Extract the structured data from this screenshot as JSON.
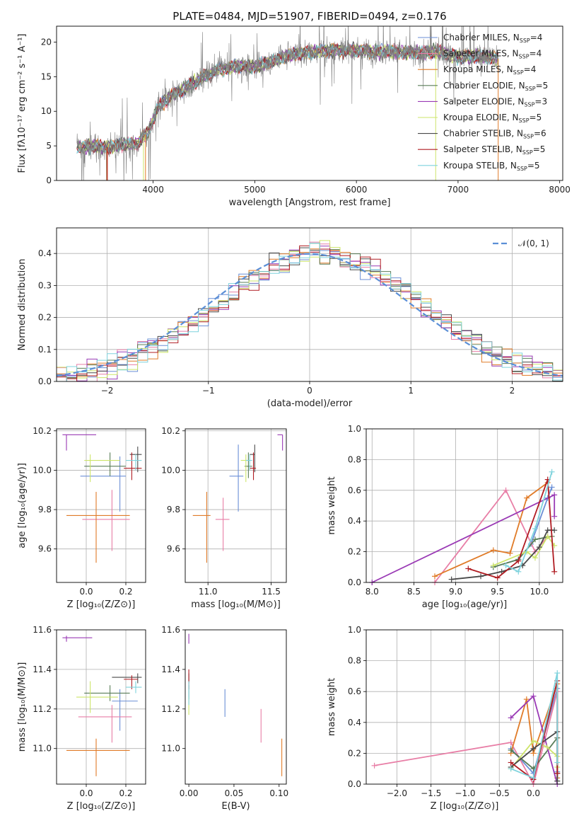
{
  "chart_data": [
    {
      "id": "spectrum",
      "type": "line",
      "title": "PLATE=0484, MJD=51907, FIBERID=0494, z=0.176",
      "xlabel": "wavelength [Angstrom, rest frame]",
      "ylabel": "Flux [fλ10⁻¹⁷ erg cm⁻² s⁻¹ A⁻¹]",
      "xlim": [
        3050,
        8030
      ],
      "ylim": [
        0,
        22.3
      ],
      "xticks": [
        4000,
        5000,
        6000,
        7000,
        8000
      ],
      "yticks": [
        0,
        5,
        10,
        15,
        20
      ],
      "legend_position": "top-right",
      "continuum": [
        [
          3250,
          4.8
        ],
        [
          3400,
          5.0
        ],
        [
          3550,
          4.8
        ],
        [
          3700,
          5.2
        ],
        [
          3850,
          5.4
        ],
        [
          3950,
          7.0
        ],
        [
          4050,
          10.6
        ],
        [
          4200,
          12.5
        ],
        [
          4350,
          13.6
        ],
        [
          4500,
          15.0
        ],
        [
          4650,
          16.0
        ],
        [
          4800,
          16.5
        ],
        [
          5000,
          16.5
        ],
        [
          5200,
          17.4
        ],
        [
          5400,
          18.3
        ],
        [
          5600,
          18.6
        ],
        [
          5800,
          18.8
        ],
        [
          6000,
          18.8
        ],
        [
          6200,
          18.6
        ],
        [
          6400,
          18.6
        ],
        [
          6600,
          18.4
        ],
        [
          6800,
          18.6
        ],
        [
          7000,
          17.8
        ],
        [
          7200,
          18.0
        ],
        [
          7400,
          17.6
        ]
      ],
      "series": [
        {
          "name": "Chabrier MILES, N$_{SSP}$=4",
          "label_main": "Chabrier MILES, N",
          "label_sub": "SSP",
          "label_tail": "=4",
          "color": "#6b8fd6"
        },
        {
          "name": "Salpeter MILES, N$_{SSP}$=4",
          "label_main": "Salpeter MILES, N",
          "label_sub": "SSP",
          "label_tail": "=4",
          "color": "#e87ea6"
        },
        {
          "name": "Kroupa MILES, N$_{SSP}$=4",
          "label_main": "Kroupa MILES, N",
          "label_sub": "SSP",
          "label_tail": "=4",
          "color": "#e07b28"
        },
        {
          "name": "Chabrier ELODIE, N$_{SSP}$=5",
          "label_main": "Chabrier ELODIE, N",
          "label_sub": "SSP",
          "label_tail": "=5",
          "color": "#5a7d58"
        },
        {
          "name": "Salpeter ELODIE, N$_{SSP}$=3",
          "label_main": "Salpeter ELODIE, N",
          "label_sub": "SSP",
          "label_tail": "=3",
          "color": "#9a3ab5"
        },
        {
          "name": "Kroupa ELODIE, N$_{SSP}$=5",
          "label_main": "Kroupa ELODIE, N",
          "label_sub": "SSP",
          "label_tail": "=5",
          "color": "#cde56a"
        },
        {
          "name": "Chabrier STELIB, N$_{SSP}$=6",
          "label_main": "Chabrier STELIB, N",
          "label_sub": "SSP",
          "label_tail": "=6",
          "color": "#4a4a4a"
        },
        {
          "name": "Salpeter STELIB, N$_{SSP}$=5",
          "label_main": "Salpeter STELIB, N",
          "label_sub": "SSP",
          "label_tail": "=5",
          "color": "#b01c22"
        },
        {
          "name": "Kroupa STELIB, N$_{SSP}$=5",
          "label_main": "Kroupa STELIB, N",
          "label_sub": "SSP",
          "label_tail": "=5",
          "color": "#7fd3dd"
        }
      ],
      "data_color": "#808080"
    },
    {
      "id": "residuals",
      "type": "histogram",
      "xlabel": "(data-model)/error",
      "ylabel": "Normed distribution",
      "xlim": [
        -2.5,
        2.5
      ],
      "ylim": [
        0,
        0.48
      ],
      "xticks": [
        -2,
        -1,
        0,
        1,
        2
      ],
      "xtick_labels": [
        "−2",
        "−1",
        "0",
        "1",
        "2"
      ],
      "yticks": [
        0.0,
        0.1,
        0.2,
        0.3,
        0.4
      ],
      "ytick_labels": [
        "0.0",
        "0.1",
        "0.2",
        "0.3",
        "0.4"
      ],
      "grid": true,
      "legend": "𝒩(0, 1)",
      "legend_position": "top-right",
      "bin_width": 0.1,
      "gaussian_color": "#5b8fd6"
    },
    {
      "id": "age-vs-Z",
      "type": "errorbar",
      "xlabel": "Z [log₁₀(Z/Z⊙)]",
      "ylabel": "age  [log₁₀(age/yr)]",
      "xlim": [
        -0.15,
        0.3
      ],
      "ylim": [
        9.43,
        10.21
      ],
      "xticks": [
        0.0,
        0.2
      ],
      "xtick_labels": [
        "0.0",
        "0.2"
      ],
      "yticks": [
        9.6,
        9.8,
        10.0,
        10.2
      ],
      "ytick_labels": [
        "9.6",
        "9.8",
        "10.0",
        "10.2"
      ],
      "grid": true,
      "points": [
        {
          "x": 0.17,
          "y": 9.97,
          "xl": -0.03,
          "xh": 0.2,
          "yl": 9.79,
          "yh": 10.07,
          "color": "#6b8fd6"
        },
        {
          "x": 0.13,
          "y": 9.75,
          "xl": -0.02,
          "xh": 0.22,
          "yl": 9.59,
          "yh": 9.9,
          "color": "#e87ea6"
        },
        {
          "x": 0.05,
          "y": 9.77,
          "xl": -0.1,
          "xh": 0.22,
          "yl": 9.53,
          "yh": 9.89,
          "color": "#e07b28"
        },
        {
          "x": 0.12,
          "y": 10.02,
          "xl": -0.01,
          "xh": 0.2,
          "yl": 9.97,
          "yh": 10.09,
          "color": "#5a7d58"
        },
        {
          "x": -0.1,
          "y": 10.18,
          "xl": -0.12,
          "xh": 0.05,
          "yl": 10.1,
          "yh": 10.18,
          "color": "#9a3ab5"
        },
        {
          "x": 0.02,
          "y": 10.05,
          "xl": -0.01,
          "xh": 0.17,
          "yl": 9.94,
          "yh": 10.08,
          "color": "#cde56a"
        },
        {
          "x": 0.26,
          "y": 10.08,
          "xl": 0.22,
          "xh": 0.28,
          "yl": 9.99,
          "yh": 10.12,
          "color": "#4a4a4a"
        },
        {
          "x": 0.23,
          "y": 10.01,
          "xl": 0.19,
          "xh": 0.28,
          "yl": 9.95,
          "yh": 10.09,
          "color": "#b01c22"
        },
        {
          "x": 0.25,
          "y": 10.05,
          "xl": 0.2,
          "xh": 0.28,
          "yl": 10.0,
          "yh": 10.08,
          "color": "#7fd3dd"
        }
      ]
    },
    {
      "id": "age-vs-mass",
      "type": "errorbar",
      "xlabel": "mass [log₁₀(M/M⊙)]",
      "ylabel": "",
      "xlim": [
        10.82,
        11.62
      ],
      "ylim": [
        9.43,
        10.21
      ],
      "xticks": [
        11.0,
        11.5
      ],
      "xtick_labels": [
        "11.0",
        "11.5"
      ],
      "yticks": [
        9.6,
        9.8,
        10.0,
        10.2
      ],
      "ytick_labels": [
        "9.6",
        "9.8",
        "10.0",
        "10.2"
      ],
      "grid": true,
      "points": [
        {
          "x": 11.24,
          "y": 9.97,
          "xl": 11.17,
          "xh": 11.28,
          "yl": 9.79,
          "yh": 10.13,
          "color": "#6b8fd6"
        },
        {
          "x": 11.12,
          "y": 9.75,
          "xl": 11.06,
          "xh": 11.17,
          "yl": 9.59,
          "yh": 9.86,
          "color": "#e87ea6"
        },
        {
          "x": 10.99,
          "y": 9.77,
          "xl": 10.88,
          "xh": 11.02,
          "yl": 9.53,
          "yh": 9.89,
          "color": "#e07b28"
        },
        {
          "x": 11.32,
          "y": 10.02,
          "xl": 11.29,
          "xh": 11.35,
          "yl": 9.96,
          "yh": 10.09,
          "color": "#5a7d58"
        },
        {
          "x": 11.59,
          "y": 10.18,
          "xl": 11.55,
          "xh": 11.59,
          "yl": 10.1,
          "yh": 10.18,
          "color": "#9a3ab5"
        },
        {
          "x": 11.3,
          "y": 10.05,
          "xl": 11.26,
          "xh": 11.33,
          "yl": 9.94,
          "yh": 10.08,
          "color": "#cde56a"
        },
        {
          "x": 11.37,
          "y": 10.08,
          "xl": 11.33,
          "xh": 11.37,
          "yl": 9.99,
          "yh": 10.13,
          "color": "#4a4a4a"
        },
        {
          "x": 11.36,
          "y": 10.01,
          "xl": 11.33,
          "xh": 11.38,
          "yl": 9.95,
          "yh": 10.09,
          "color": "#b01c22"
        },
        {
          "x": 11.33,
          "y": 10.05,
          "xl": 11.3,
          "xh": 11.35,
          "yl": 10.0,
          "yh": 10.08,
          "color": "#7fd3dd"
        }
      ]
    },
    {
      "id": "mass-weight-vs-age",
      "type": "line",
      "xlabel": "age  [log₁₀(age/yr)]",
      "ylabel": "mass weight",
      "xlim": [
        7.93,
        10.28
      ],
      "ylim": [
        0,
        1.0
      ],
      "xticks": [
        8.0,
        8.5,
        9.0,
        9.5,
        10.0
      ],
      "xtick_labels": [
        "8.0",
        "8.5",
        "9.0",
        "9.5",
        "10.0"
      ],
      "yticks": [
        0.0,
        0.2,
        0.4,
        0.6,
        0.8,
        1.0
      ],
      "ytick_labels": [
        "0.0",
        "0.2",
        "0.4",
        "0.6",
        "0.8",
        "1.0"
      ],
      "grid": true,
      "series": [
        {
          "color": "#6b8fd6",
          "x": [
            9.45,
            9.75,
            9.9,
            10.1,
            10.15
          ],
          "y": [
            0.1,
            0.15,
            0.25,
            0.55,
            0.62
          ]
        },
        {
          "color": "#e87ea6",
          "x": [
            8.75,
            9.6,
            9.95,
            10.1
          ],
          "y": [
            0.0,
            0.6,
            0.2,
            0.3
          ]
        },
        {
          "color": "#e07b28",
          "x": [
            8.75,
            9.45,
            9.65,
            9.85,
            10.1
          ],
          "y": [
            0.04,
            0.21,
            0.19,
            0.55,
            0.65
          ]
        },
        {
          "color": "#5a7d58",
          "x": [
            9.45,
            9.75,
            9.95,
            10.15
          ],
          "y": [
            0.1,
            0.15,
            0.28,
            0.3
          ]
        },
        {
          "color": "#9a3ab5",
          "x": [
            8.0,
            10.18,
            10.18
          ],
          "y": [
            0.0,
            0.57,
            0.43
          ]
        },
        {
          "color": "#cde56a",
          "x": [
            9.45,
            9.85,
            9.95,
            10.1,
            10.18
          ],
          "y": [
            0.11,
            0.2,
            0.16,
            0.3,
            0.24
          ]
        },
        {
          "color": "#4a4a4a",
          "x": [
            8.95,
            9.3,
            9.55,
            9.8,
            10.0,
            10.1,
            10.18
          ],
          "y": [
            0.02,
            0.04,
            0.07,
            0.11,
            0.23,
            0.34,
            0.34
          ]
        },
        {
          "color": "#b01c22",
          "x": [
            9.15,
            9.5,
            9.75,
            10.1,
            10.18
          ],
          "y": [
            0.09,
            0.03,
            0.14,
            0.67,
            0.07
          ]
        },
        {
          "color": "#7fd3dd",
          "x": [
            9.6,
            9.75,
            9.95,
            10.15
          ],
          "y": [
            0.11,
            0.07,
            0.35,
            0.72
          ]
        }
      ]
    },
    {
      "id": "mass-vs-Z",
      "type": "errorbar",
      "xlabel": "Z [log₁₀(Z/Z⊙)]",
      "ylabel": "mass [log₁₀(M/M⊙)]",
      "xlim": [
        -0.15,
        0.3
      ],
      "ylim": [
        10.82,
        11.6
      ],
      "xticks": [
        0.0,
        0.2
      ],
      "xtick_labels": [
        "0.0",
        "0.2"
      ],
      "yticks": [
        11.0,
        11.2,
        11.4,
        11.6
      ],
      "ytick_labels": [
        "11.0",
        "11.2",
        "11.4",
        "11.6"
      ],
      "grid": true,
      "points": [
        {
          "x": 0.17,
          "y": 11.24,
          "xl": 0.13,
          "xh": 0.26,
          "yl": 11.09,
          "yh": 11.3,
          "color": "#6b8fd6"
        },
        {
          "x": 0.13,
          "y": 11.16,
          "xl": -0.04,
          "xh": 0.23,
          "yl": 11.03,
          "yh": 11.22,
          "color": "#e87ea6"
        },
        {
          "x": 0.05,
          "y": 10.99,
          "xl": -0.1,
          "xh": 0.22,
          "yl": 10.86,
          "yh": 11.05,
          "color": "#e07b28"
        },
        {
          "x": 0.12,
          "y": 11.28,
          "xl": -0.01,
          "xh": 0.22,
          "yl": 11.24,
          "yh": 11.32,
          "color": "#5a7d58"
        },
        {
          "x": -0.1,
          "y": 11.56,
          "xl": -0.12,
          "xh": 0.03,
          "yl": 11.54,
          "yh": 11.57,
          "color": "#9a3ab5"
        },
        {
          "x": 0.02,
          "y": 11.26,
          "xl": -0.05,
          "xh": 0.16,
          "yl": 11.18,
          "yh": 11.34,
          "color": "#cde56a"
        },
        {
          "x": 0.26,
          "y": 11.36,
          "xl": 0.13,
          "xh": 0.28,
          "yl": 11.33,
          "yh": 11.38,
          "color": "#4a4a4a"
        },
        {
          "x": 0.23,
          "y": 11.35,
          "xl": 0.19,
          "xh": 0.26,
          "yl": 11.3,
          "yh": 11.37,
          "color": "#b01c22"
        },
        {
          "x": 0.25,
          "y": 11.31,
          "xl": 0.2,
          "xh": 0.28,
          "yl": 11.28,
          "yh": 11.34,
          "color": "#7fd3dd"
        }
      ]
    },
    {
      "id": "mass-vs-ebv",
      "type": "errorbar",
      "xlabel": "E(B-V)",
      "ylabel": "",
      "xlim": [
        -0.004,
        0.108
      ],
      "ylim": [
        10.82,
        11.6
      ],
      "xticks": [
        0.0,
        0.05,
        0.1
      ],
      "xtick_labels": [
        "0.00",
        "0.05",
        "0.10"
      ],
      "yticks": [
        11.0,
        11.2,
        11.4,
        11.6
      ],
      "ytick_labels": [
        "11.0",
        "11.2",
        "11.4",
        "11.6"
      ],
      "grid": false,
      "points": [
        {
          "x": 0.04,
          "y": 11.24,
          "yl": 11.16,
          "yh": 11.3,
          "color": "#6b8fd6"
        },
        {
          "x": 0.08,
          "y": 11.16,
          "yl": 11.03,
          "yh": 11.2,
          "color": "#e87ea6"
        },
        {
          "x": 0.103,
          "y": 10.96,
          "yl": 10.86,
          "yh": 11.05,
          "color": "#e07b28"
        },
        {
          "x": 0.0,
          "y": 11.28,
          "yl": 11.25,
          "yh": 11.32,
          "color": "#5a7d58"
        },
        {
          "x": 0.0,
          "y": 11.56,
          "yl": 11.53,
          "yh": 11.58,
          "color": "#9a3ab5"
        },
        {
          "x": 0.0,
          "y": 11.2,
          "yl": 11.17,
          "yh": 11.26,
          "color": "#cde56a"
        },
        {
          "x": 0.0,
          "y": 11.36,
          "yl": 11.33,
          "yh": 11.38,
          "color": "#4a4a4a"
        },
        {
          "x": 0.0,
          "y": 11.36,
          "yl": 11.3,
          "yh": 11.4,
          "color": "#b01c22"
        },
        {
          "x": 0.0,
          "y": 11.28,
          "yl": 11.22,
          "yh": 11.34,
          "color": "#7fd3dd"
        }
      ]
    },
    {
      "id": "mass-weight-vs-Z",
      "type": "line",
      "xlabel": "Z [log₁₀(Z/Z⊙)]",
      "ylabel": "mass weight",
      "xlim": [
        -2.45,
        0.43
      ],
      "ylim": [
        0,
        1.0
      ],
      "xticks": [
        -2.0,
        -1.5,
        -1.0,
        -0.5,
        0.0
      ],
      "xtick_labels": [
        "−2.0",
        "−1.5",
        "−1.0",
        "−0.5",
        "0.0"
      ],
      "yticks": [
        0.0,
        0.2,
        0.4,
        0.6,
        0.8,
        1.0
      ],
      "ytick_labels": [
        "0.0",
        "0.2",
        "0.4",
        "0.6",
        "0.8",
        "1.0"
      ],
      "grid": true,
      "series": [
        {
          "color": "#6b8fd6",
          "x": [
            -0.33,
            0.0,
            0.35,
            0.35
          ],
          "y": [
            0.23,
            0.07,
            0.62,
            0.08
          ]
        },
        {
          "color": "#e87ea6",
          "x": [
            -2.33,
            -0.33,
            0.0,
            0.35,
            0.35
          ],
          "y": [
            0.12,
            0.27,
            0.0,
            0.6,
            0.3
          ]
        },
        {
          "color": "#e07b28",
          "x": [
            -0.33,
            -0.1,
            0.0,
            0.35,
            0.35
          ],
          "y": [
            0.2,
            0.55,
            0.2,
            0.65,
            0.04
          ]
        },
        {
          "color": "#5a7d58",
          "x": [
            -0.33,
            0.0,
            0.35,
            0.35
          ],
          "y": [
            0.22,
            0.1,
            0.3,
            0.02
          ]
        },
        {
          "color": "#9a3ab5",
          "x": [
            -0.33,
            0.0,
            0.35
          ],
          "y": [
            0.43,
            0.57,
            0.0
          ]
        },
        {
          "color": "#cde56a",
          "x": [
            -0.33,
            0.0,
            0.2,
            0.35,
            0.35
          ],
          "y": [
            0.1,
            0.28,
            0.24,
            0.18,
            0.11
          ]
        },
        {
          "color": "#4a4a4a",
          "x": [
            -0.33,
            0.0,
            0.35,
            0.35,
            0.35
          ],
          "y": [
            0.11,
            0.23,
            0.34,
            0.07,
            0.02
          ]
        },
        {
          "color": "#b01c22",
          "x": [
            -0.33,
            0.0,
            0.35,
            0.35
          ],
          "y": [
            0.14,
            0.03,
            0.67,
            0.07
          ]
        },
        {
          "color": "#7fd3dd",
          "x": [
            -0.33,
            0.0,
            0.35,
            0.35
          ],
          "y": [
            0.1,
            0.04,
            0.72,
            0.14
          ]
        }
      ]
    }
  ]
}
